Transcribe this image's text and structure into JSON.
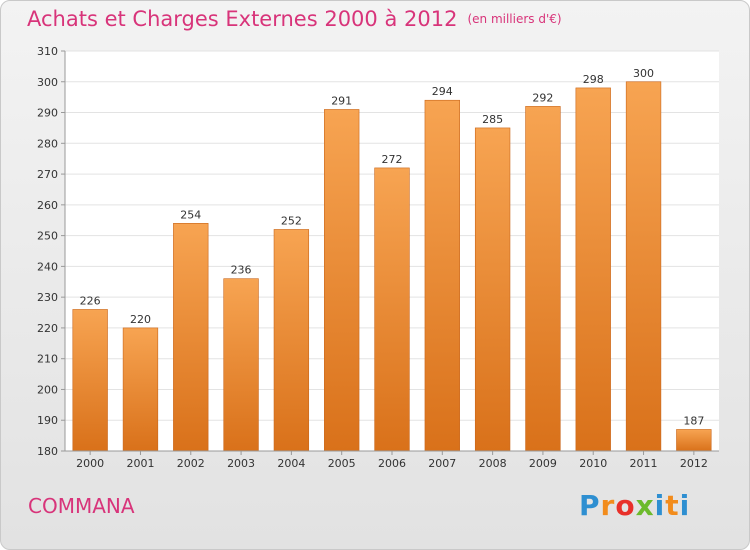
{
  "header": {
    "title": "Achats et Charges Externes 2000 à 2012",
    "unit": "(en milliers d'€)"
  },
  "footer": {
    "commune": "COMMANA",
    "logo_letters": [
      "P",
      "r",
      "o",
      "x",
      "i",
      "t",
      "i"
    ],
    "logo_colors": [
      "#2e8fd1",
      "#f28c1c",
      "#e8302a",
      "#6cba2c",
      "#2e8fd1",
      "#f28c1c",
      "#2e8fd1"
    ]
  },
  "chart_data": {
    "type": "bar",
    "title": "Achats et Charges Externes 2000 à 2012",
    "xlabel": "",
    "ylabel": "",
    "categories": [
      "2000",
      "2001",
      "2002",
      "2003",
      "2004",
      "2005",
      "2006",
      "2007",
      "2008",
      "2009",
      "2010",
      "2011",
      "2012"
    ],
    "values": [
      226,
      220,
      254,
      236,
      252,
      291,
      272,
      294,
      285,
      292,
      298,
      300,
      187
    ],
    "ylim": [
      180,
      310
    ],
    "yticks": [
      180,
      190,
      200,
      210,
      220,
      230,
      240,
      250,
      260,
      270,
      280,
      290,
      300,
      310
    ],
    "grid": true,
    "bar_color": "#f0862a"
  }
}
